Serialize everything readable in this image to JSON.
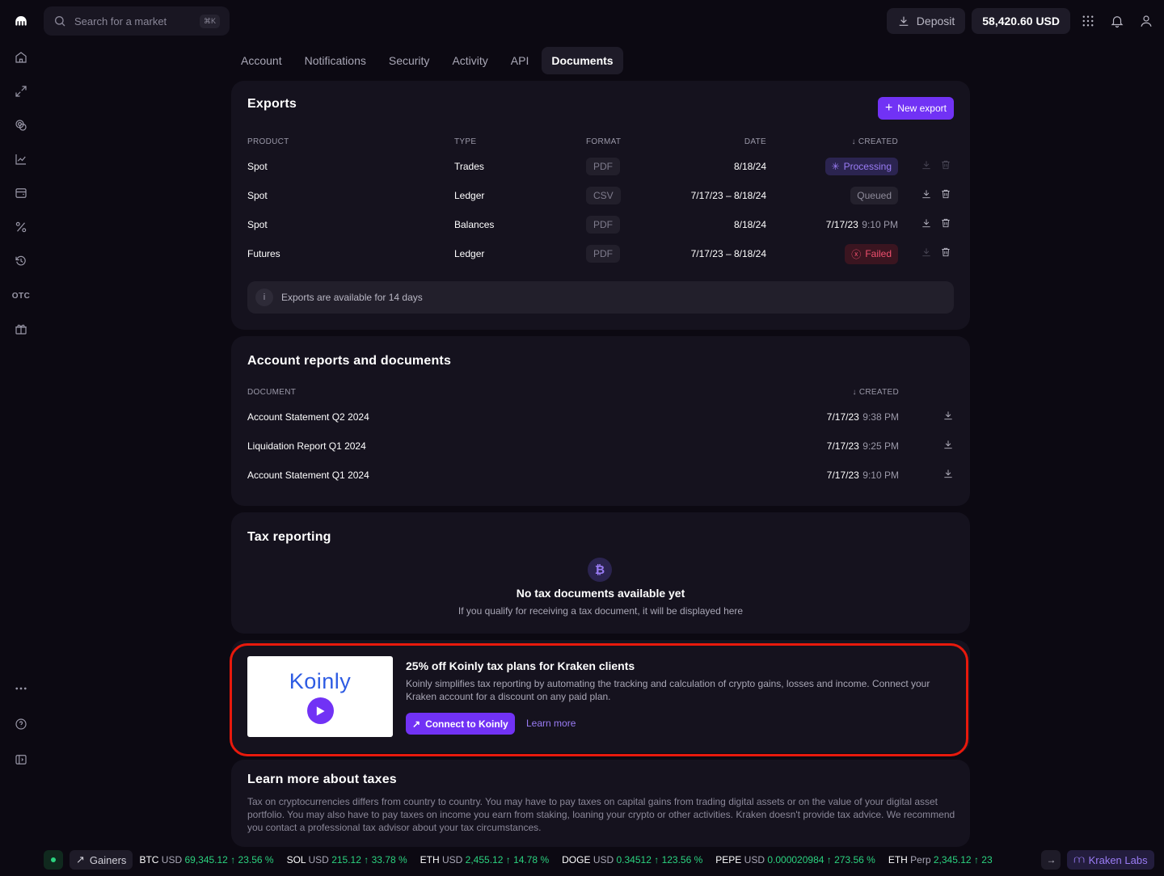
{
  "search": {
    "placeholder": "Search for a market",
    "shortcut": "⌘K"
  },
  "header": {
    "deposit_label": "Deposit",
    "balance": "58,420.60 USD"
  },
  "sidebar": {
    "items": [
      {
        "name": "home-icon"
      },
      {
        "name": "transfer-icon"
      },
      {
        "name": "earn-icon"
      },
      {
        "name": "chart-icon"
      },
      {
        "name": "wallet-icon"
      },
      {
        "name": "percent-icon"
      },
      {
        "name": "history-icon"
      },
      {
        "label": "OTC"
      },
      {
        "name": "gift-icon"
      }
    ],
    "bottom": [
      {
        "name": "more-icon"
      },
      {
        "name": "help-icon"
      },
      {
        "name": "collapse-icon"
      }
    ]
  },
  "tabs": [
    {
      "label": "Account"
    },
    {
      "label": "Notifications"
    },
    {
      "label": "Security"
    },
    {
      "label": "Activity"
    },
    {
      "label": "API"
    },
    {
      "label": "Documents",
      "active": true
    }
  ],
  "exports": {
    "title": "Exports",
    "new_label": "New export",
    "headers": {
      "product": "PRODUCT",
      "type": "TYPE",
      "format": "FORMAT",
      "date": "DATE",
      "created": "CREATED"
    },
    "rows": [
      {
        "product": "Spot",
        "type": "Trades",
        "format": "PDF",
        "date": "8/18/24",
        "status": "Processing"
      },
      {
        "product": "Spot",
        "type": "Ledger",
        "format": "CSV",
        "date": "7/17/23 – 8/18/24",
        "status": "Queued"
      },
      {
        "product": "Spot",
        "type": "Balances",
        "format": "PDF",
        "date": "8/18/24",
        "created_date": "7/17/23",
        "created_time": "9:10 PM"
      },
      {
        "product": "Futures",
        "type": "Ledger",
        "format": "PDF",
        "date": "7/17/23 – 8/18/24",
        "status": "Failed"
      }
    ],
    "note": "Exports are available for 14 days"
  },
  "reports": {
    "title": "Account reports and documents",
    "headers": {
      "document": "DOCUMENT",
      "created": "CREATED"
    },
    "rows": [
      {
        "document": "Account Statement Q2 2024",
        "date": "7/17/23",
        "time": "9:38 PM"
      },
      {
        "document": "Liquidation Report Q1 2024",
        "date": "7/17/23",
        "time": "9:25 PM"
      },
      {
        "document": "Account Statement Q1 2024",
        "date": "7/17/23",
        "time": "9:10 PM"
      }
    ]
  },
  "tax": {
    "title": "Tax reporting",
    "empty_title": "No tax documents available yet",
    "empty_sub": "If you qualify for receiving a tax document, it will be displayed here"
  },
  "promo": {
    "logo": "Koinly",
    "title": "25% off Koinly tax plans for Kraken clients",
    "body": "Koinly simplifies tax reporting by automating the tracking and calculation of crypto gains, losses and income. Connect your Kraken account for a discount on any paid plan.",
    "cta": "Connect to Koinly",
    "link": "Learn more"
  },
  "learn": {
    "title": "Learn more about taxes",
    "body": "Tax on cryptocurrencies differs from country to country. You may have to pay taxes on capital gains from trading digital assets or on the value of your digital asset portfolio. You may also have to pay taxes on income you earn from staking, loaning your crypto or other activities. Kraken doesn't provide tax advice. We recommend you contact a professional tax advisor about your tax circumstances."
  },
  "ticker": {
    "filter": "Gainers",
    "items": [
      {
        "sym": "BTC",
        "quote": "USD",
        "price": "69,345.12",
        "change": "23.56 %"
      },
      {
        "sym": "SOL",
        "quote": "USD",
        "price": "215.12",
        "change": "33.78 %"
      },
      {
        "sym": "ETH",
        "quote": "USD",
        "price": "2,455.12",
        "change": "14.78 %"
      },
      {
        "sym": "DOGE",
        "quote": "USD",
        "price": "0.34512",
        "change": "123.56 %"
      },
      {
        "sym": "PEPE",
        "quote": "USD",
        "price": "0.000020984",
        "change": "273.56 %"
      },
      {
        "sym": "ETH",
        "quote": "Perp",
        "price": "2,345.12",
        "change": "23"
      }
    ],
    "labs": "Kraken Labs"
  },
  "colors": {
    "accent": "#7132f5",
    "positive": "#2bd27f",
    "danger": "#f0506e"
  }
}
